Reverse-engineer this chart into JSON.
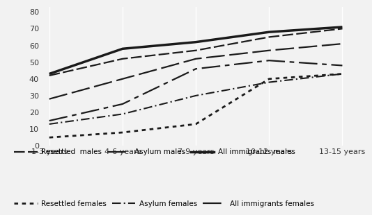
{
  "x_labels": [
    "1-3 years",
    "4-6 years",
    "7-9 years",
    "10-12 years",
    "13-15 years"
  ],
  "x_values": [
    0,
    1,
    2,
    3,
    4
  ],
  "series": {
    "All immigrants males": {
      "values": [
        43,
        58,
        62,
        68,
        71
      ]
    },
    "Resettled males": {
      "values": [
        42,
        52,
        57,
        65,
        70
      ]
    },
    "Asylum males": {
      "values": [
        28,
        40,
        52,
        57,
        61
      ]
    },
    "All immigrants females": {
      "values": [
        15,
        25,
        46,
        51,
        48
      ]
    },
    "Asylum females": {
      "values": [
        13,
        19,
        30,
        38,
        43
      ]
    },
    "Resettled females": {
      "values": [
        5,
        8,
        13,
        40,
        43
      ]
    }
  },
  "ylim": [
    0,
    83
  ],
  "yticks": [
    0,
    10,
    20,
    30,
    40,
    50,
    60,
    70,
    80
  ],
  "background_color": "#f2f2f2",
  "plot_bg_color": "#f2f2f2",
  "grid_color": "#ffffff"
}
